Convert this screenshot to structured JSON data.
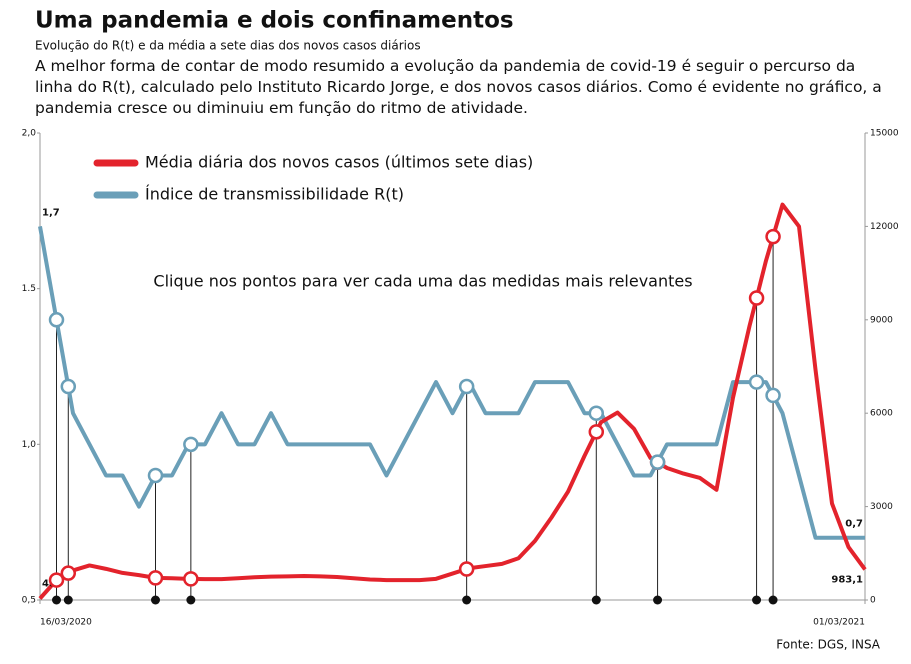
{
  "chart_data": {
    "type": "line",
    "title": "Uma pandemia e dois confinamentos",
    "subtitle": "Evolução do R(t) e da média a sete dias dos novos casos diários",
    "description": "A melhor forma de contar de modo resumido a evolução da pandemia de covid-19 é seguir o percurso da linha do R(t), calculado pelo Instituto Ricardo Jorge, e dos novos casos diários. Como é evidente no gráfico, a pandemia cresce ou diminuiu em função do ritmo de atividade.",
    "instruction": "Clique nos pontos para ver cada uma das medidas mais relevantes",
    "source": "Fonte: DGS, INSA",
    "x": [
      "2020-03-16",
      "2020-03-23",
      "2020-03-30",
      "2020-04-06",
      "2020-04-13",
      "2020-04-20",
      "2020-04-27",
      "2020-05-04",
      "2020-05-11",
      "2020-05-18",
      "2020-05-25",
      "2020-06-01",
      "2020-06-08",
      "2020-06-15",
      "2020-06-22",
      "2020-06-29",
      "2020-07-06",
      "2020-07-13",
      "2020-07-20",
      "2020-07-27",
      "2020-08-03",
      "2020-08-10",
      "2020-08-17",
      "2020-08-24",
      "2020-08-31",
      "2020-09-07",
      "2020-09-14",
      "2020-09-21",
      "2020-09-28",
      "2020-10-05",
      "2020-10-12",
      "2020-10-19",
      "2020-10-26",
      "2020-11-02",
      "2020-11-09",
      "2020-11-16",
      "2020-11-23",
      "2020-11-30",
      "2020-12-07",
      "2020-12-14",
      "2020-12-21",
      "2020-12-28",
      "2021-01-04",
      "2021-01-11",
      "2021-01-18",
      "2021-01-25",
      "2021-02-01",
      "2021-02-08",
      "2021-02-15",
      "2021-02-22",
      "2021-03-01"
    ],
    "xlim": [
      "2020-03-16",
      "2021-03-01"
    ],
    "xticks": [
      {
        "value": "2020-03-16",
        "label": "16/03/2020"
      },
      {
        "value": "2021-03-01",
        "label": "01/03/2021"
      }
    ],
    "series": [
      {
        "name": "Média diária dos novos casos (últimos sete dias)",
        "color": "#e3232c",
        "axis": "y2",
        "values": [
          48,
          640,
          950,
          1110,
          1000,
          870,
          800,
          710,
          700,
          680,
          670,
          670,
          700,
          730,
          750,
          760,
          770,
          760,
          740,
          700,
          660,
          640,
          640,
          640,
          680,
          850,
          1020,
          1090,
          1160,
          1340,
          1900,
          2650,
          3480,
          4630,
          5710,
          6020,
          5500,
          4560,
          4240,
          4060,
          3920,
          3540,
          6500,
          8800,
          10900,
          12700,
          12000,
          7400,
          3100,
          1700,
          983.1
        ],
        "value_labels": [
          "48",
          null,
          null,
          null,
          null,
          null,
          null,
          null,
          null,
          null,
          null,
          null,
          null,
          null,
          null,
          null,
          null,
          null,
          null,
          null,
          null,
          null,
          null,
          null,
          null,
          null,
          null,
          null,
          null,
          null,
          null,
          null,
          null,
          null,
          null,
          null,
          null,
          null,
          null,
          null,
          null,
          null,
          null,
          null,
          null,
          null,
          null,
          null,
          null,
          null,
          "983,1"
        ]
      },
      {
        "name": "Índice de transmissibilidade R(t)",
        "color": "#6a9fb8",
        "values": [
          1.7,
          1.4,
          1.1,
          1.0,
          0.9,
          0.9,
          0.8,
          0.9,
          0.9,
          1.0,
          1.0,
          1.1,
          1.0,
          1.0,
          1.1,
          1.0,
          1.0,
          1.0,
          1.0,
          1.0,
          1.0,
          0.9,
          1.0,
          1.1,
          1.2,
          1.1,
          1.2,
          1.1,
          1.1,
          1.1,
          1.2,
          1.2,
          1.2,
          1.1,
          1.1,
          1.0,
          0.9,
          0.9,
          1.0,
          1.0,
          1.0,
          1.0,
          1.2,
          1.2,
          1.2,
          1.1,
          0.9,
          0.7,
          0.7,
          0.7,
          0.7
        ],
        "value_labels": [
          "1,7",
          null,
          null,
          null,
          null,
          null,
          null,
          null,
          null,
          null,
          null,
          null,
          null,
          null,
          null,
          null,
          null,
          null,
          null,
          null,
          null,
          null,
          null,
          null,
          null,
          null,
          null,
          null,
          null,
          null,
          null,
          null,
          null,
          null,
          null,
          null,
          null,
          null,
          null,
          null,
          null,
          null,
          null,
          null,
          null,
          null,
          null,
          null,
          null,
          null,
          "0,7"
        ]
      }
    ],
    "ylim": [
      0.5,
      2.0
    ],
    "yticks": [
      {
        "value": 0.5,
        "label": "0,5"
      },
      {
        "value": 1.0,
        "label": "1,0"
      },
      {
        "value": 1.5,
        "label": "1.5"
      },
      {
        "value": 2.0,
        "label": "2,0"
      }
    ],
    "y2lim": [
      0,
      15000
    ],
    "y2ticks": [
      0,
      3000,
      6000,
      9000,
      12000,
      15000
    ],
    "events": [
      "2020-03-23",
      "2020-03-28",
      "2020-05-04",
      "2020-05-19",
      "2020-09-13",
      "2020-11-07",
      "2020-12-03",
      "2021-01-14",
      "2021-01-21"
    ],
    "grid": false
  }
}
